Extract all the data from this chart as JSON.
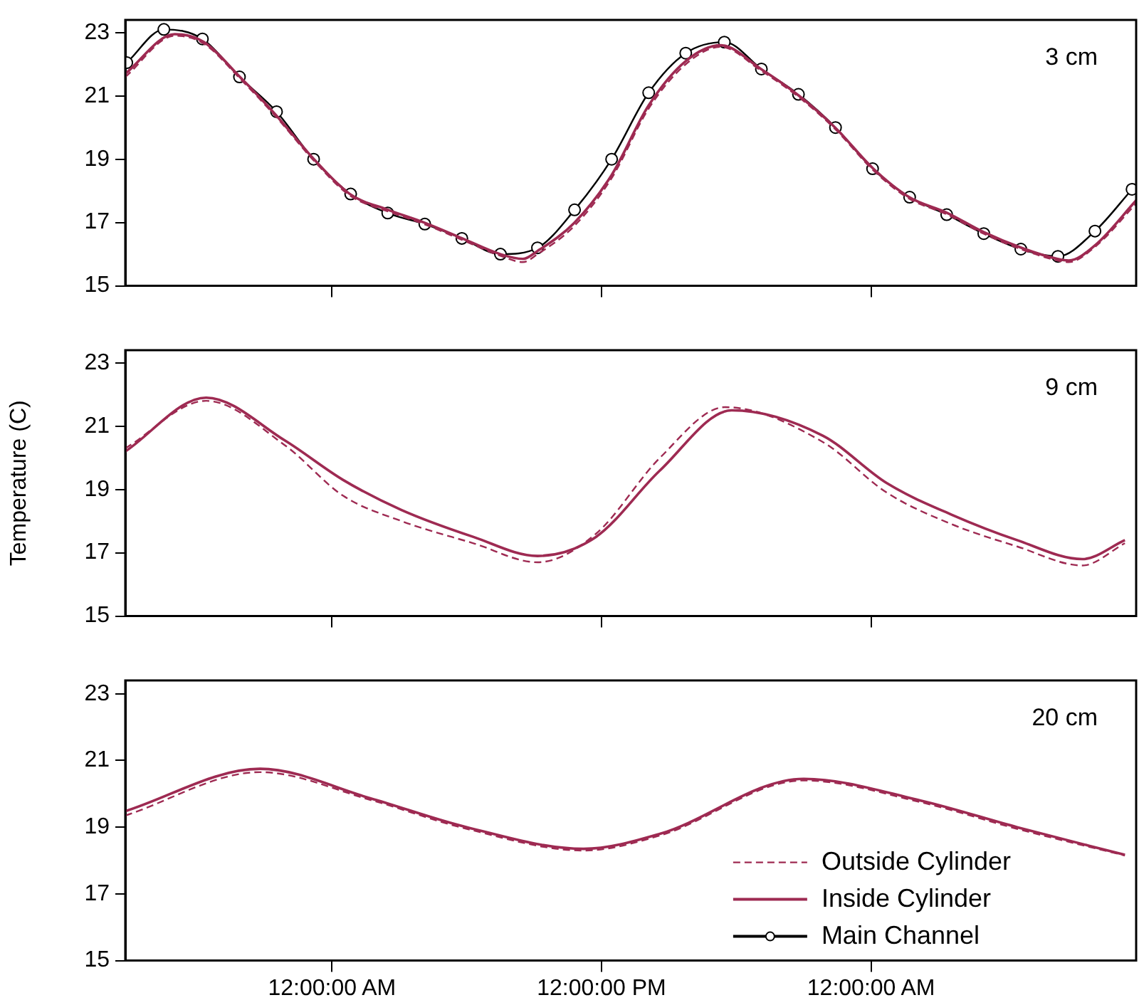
{
  "chart_data": [
    {
      "type": "line",
      "annotations": [
        "3 cm"
      ],
      "xlim": [
        "2000-01-01T14:48",
        "2000-01-03T11:48"
      ],
      "xticks": [
        {
          "value": "2000-01-02T00:00",
          "label": null
        },
        {
          "value": "2000-01-02T12:00",
          "label": null
        },
        {
          "value": "2000-01-03T00:00",
          "label": null
        }
      ],
      "ylim": [
        15,
        23.4
      ],
      "yticks": [
        15,
        17,
        19,
        21,
        23
      ],
      "tick_labels": "y",
      "grid": false,
      "legend": false,
      "series": [
        {
          "color": "#9e2a52",
          "line_style": "dashed",
          "marker": "none",
          "x": [
            "2000-01-01T14:48",
            "2000-01-01T17:00",
            "2000-01-01T18:18",
            "2000-01-01T19:54",
            "2000-01-01T21:30",
            "2000-01-01T23:12",
            "2000-01-02T00:48",
            "2000-01-02T02:30",
            "2000-01-02T04:06",
            "2000-01-02T05:48",
            "2000-01-02T07:30",
            "2000-01-02T08:30",
            "2000-01-02T09:09",
            "2000-01-02T10:48",
            "2000-01-02T12:27",
            "2000-01-02T14:06",
            "2000-01-02T15:45",
            "2000-01-02T17:18",
            "2000-01-02T19:06",
            "2000-01-02T20:48",
            "2000-01-02T22:24",
            "2000-01-03T00:06",
            "2000-01-03T01:42",
            "2000-01-03T03:24",
            "2000-01-03T05:00",
            "2000-01-03T06:42",
            "2000-01-03T08:18",
            "2000-01-03T08:48",
            "2000-01-03T10:00",
            "2000-01-03T11:48"
          ],
          "values": [
            21.6,
            22.9,
            22.65,
            21.55,
            20.35,
            18.95,
            17.85,
            17.35,
            16.95,
            16.45,
            15.95,
            15.75,
            16.0,
            16.9,
            18.4,
            20.6,
            22.0,
            22.55,
            21.8,
            20.95,
            19.95,
            18.65,
            17.75,
            17.25,
            16.65,
            16.15,
            15.8,
            15.75,
            16.25,
            17.6
          ]
        },
        {
          "color": "#9e2a52",
          "line_style": "solid",
          "marker": "none",
          "x": [
            "2000-01-01T14:48",
            "2000-01-01T17:00",
            "2000-01-01T18:18",
            "2000-01-01T19:54",
            "2000-01-01T21:30",
            "2000-01-01T23:12",
            "2000-01-02T00:48",
            "2000-01-02T02:30",
            "2000-01-02T04:06",
            "2000-01-02T05:48",
            "2000-01-02T07:30",
            "2000-01-02T08:30",
            "2000-01-02T09:09",
            "2000-01-02T10:48",
            "2000-01-02T12:27",
            "2000-01-02T14:06",
            "2000-01-02T15:45",
            "2000-01-02T17:18",
            "2000-01-02T19:06",
            "2000-01-02T20:48",
            "2000-01-02T22:24",
            "2000-01-03T00:06",
            "2000-01-03T01:42",
            "2000-01-03T03:24",
            "2000-01-03T05:00",
            "2000-01-03T06:42",
            "2000-01-03T08:18",
            "2000-01-03T08:48",
            "2000-01-03T10:00",
            "2000-01-03T11:48"
          ],
          "values": [
            21.7,
            22.95,
            22.7,
            21.6,
            20.4,
            19.0,
            17.9,
            17.4,
            17.0,
            16.5,
            16.0,
            15.85,
            16.1,
            17.0,
            18.5,
            20.7,
            22.1,
            22.6,
            21.85,
            21.0,
            20.0,
            18.7,
            17.8,
            17.3,
            16.7,
            16.2,
            15.85,
            15.8,
            16.3,
            17.7
          ]
        },
        {
          "color": "#000000",
          "line_style": "solid",
          "marker": "circle",
          "x": [
            "2000-01-01T14:52",
            "2000-01-01T16:31",
            "2000-01-01T18:14",
            "2000-01-01T19:53",
            "2000-01-01T21:32",
            "2000-01-01T23:11",
            "2000-01-02T00:50",
            "2000-01-02T02:29",
            "2000-01-02T04:08",
            "2000-01-02T05:47",
            "2000-01-02T07:30",
            "2000-01-02T09:09",
            "2000-01-02T10:48",
            "2000-01-02T12:27",
            "2000-01-02T14:06",
            "2000-01-02T15:45",
            "2000-01-02T17:28",
            "2000-01-02T19:07",
            "2000-01-02T20:46",
            "2000-01-02T22:25",
            "2000-01-03T00:04",
            "2000-01-03T01:43",
            "2000-01-03T03:22",
            "2000-01-03T05:01",
            "2000-01-03T06:40",
            "2000-01-03T08:19",
            "2000-01-03T09:58",
            "2000-01-03T11:37"
          ],
          "values": [
            22.05,
            23.1,
            22.8,
            21.6,
            20.5,
            19.0,
            17.9,
            17.3,
            16.95,
            16.5,
            16.0,
            16.2,
            17.4,
            19.0,
            21.1,
            22.35,
            22.7,
            21.85,
            21.05,
            20.0,
            18.7,
            17.8,
            17.25,
            16.65,
            16.16,
            15.93,
            16.73,
            18.05
          ]
        }
      ]
    },
    {
      "type": "line",
      "annotations": [
        "9 cm"
      ],
      "ylabel": "Temperature (C)",
      "xlim": [
        "2000-01-01T14:48",
        "2000-01-03T11:48"
      ],
      "xticks": [
        {
          "value": "2000-01-02T00:00",
          "label": null
        },
        {
          "value": "2000-01-02T12:00",
          "label": null
        },
        {
          "value": "2000-01-03T00:00",
          "label": null
        }
      ],
      "ylim": [
        15,
        23.4
      ],
      "yticks": [
        15,
        17,
        19,
        21,
        23
      ],
      "tick_labels": "y",
      "grid": false,
      "legend": false,
      "series": [
        {
          "color": "#9e2a52",
          "line_style": "dashed",
          "marker": "none",
          "x": [
            "2000-01-01T14:48",
            "2000-01-01T18:24",
            "2000-01-01T21:54",
            "2000-01-02T00:30",
            "2000-01-02T03:06",
            "2000-01-02T06:18",
            "2000-01-02T09:09",
            "2000-01-02T11:45",
            "2000-01-02T14:36",
            "2000-01-02T17:30",
            "2000-01-02T21:51",
            "2000-01-03T00:42",
            "2000-01-03T03:36",
            "2000-01-03T06:30",
            "2000-01-03T09:24",
            "2000-01-03T11:18"
          ],
          "values": [
            20.3,
            21.8,
            20.4,
            18.8,
            18.0,
            17.3,
            16.7,
            17.6,
            20.0,
            21.6,
            20.5,
            18.9,
            17.9,
            17.2,
            16.6,
            17.3
          ]
        },
        {
          "color": "#9e2a52",
          "line_style": "solid",
          "marker": "none",
          "x": [
            "2000-01-01T14:48",
            "2000-01-01T18:24",
            "2000-01-01T21:54",
            "2000-01-02T00:30",
            "2000-01-02T03:06",
            "2000-01-02T06:18",
            "2000-01-02T09:09",
            "2000-01-02T11:45",
            "2000-01-02T14:36",
            "2000-01-02T17:48",
            "2000-01-02T21:51",
            "2000-01-03T00:42",
            "2000-01-03T03:36",
            "2000-01-03T06:30",
            "2000-01-03T09:24",
            "2000-01-03T11:18"
          ],
          "values": [
            20.2,
            21.9,
            20.55,
            19.3,
            18.35,
            17.5,
            16.9,
            17.5,
            19.6,
            21.5,
            20.7,
            19.2,
            18.2,
            17.4,
            16.8,
            17.4
          ]
        }
      ]
    },
    {
      "type": "line",
      "annotations": [
        "20 cm"
      ],
      "xlim": [
        "2000-01-01T14:48",
        "2000-01-03T11:48"
      ],
      "xticks": [
        {
          "value": "2000-01-02T00:00",
          "label": "12:00:00 AM"
        },
        {
          "value": "2000-01-02T12:00",
          "label": "12:00:00 PM"
        },
        {
          "value": "2000-01-03T00:00",
          "label": "12:00:00 AM"
        }
      ],
      "ylim": [
        15,
        23.4
      ],
      "yticks": [
        15,
        17,
        19,
        21,
        23
      ],
      "grid": false,
      "legend": "bottom right",
      "series": [
        {
          "name": "Outside Cylinder",
          "color": "#9e2a52",
          "line_style": "dashed",
          "marker": "none",
          "x": [
            "2000-01-01T14:48",
            "2000-01-01T20:48",
            "2000-01-02T01:42",
            "2000-01-02T06:00",
            "2000-01-02T11:12",
            "2000-01-02T14:36",
            "2000-01-02T21:00",
            "2000-01-03T02:12",
            "2000-01-03T06:30",
            "2000-01-03T11:18"
          ],
          "values": [
            19.35,
            20.65,
            19.82,
            18.95,
            18.3,
            18.75,
            20.4,
            19.75,
            18.95,
            18.15
          ]
        },
        {
          "name": "Inside Cylinder",
          "color": "#9e2a52",
          "line_style": "solid",
          "marker": "none",
          "x": [
            "2000-01-01T14:48",
            "2000-01-01T20:48",
            "2000-01-02T01:42",
            "2000-01-02T06:00",
            "2000-01-02T11:12",
            "2000-01-02T14:36",
            "2000-01-02T21:00",
            "2000-01-03T02:12",
            "2000-01-03T06:30",
            "2000-01-03T11:18"
          ],
          "values": [
            19.48,
            20.75,
            19.87,
            19.0,
            18.35,
            18.8,
            20.45,
            19.8,
            19.0,
            18.17
          ]
        },
        {
          "name": "Main Channel",
          "color": "#000000",
          "line_style": "solid",
          "marker": "circle"
        }
      ]
    }
  ]
}
